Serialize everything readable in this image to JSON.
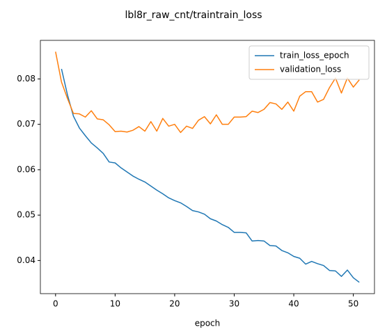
{
  "chart_data": {
    "type": "line",
    "title": "lbl8r_raw_cnt/traintrain_loss",
    "xlabel": "epoch",
    "xlim": [
      -2.55,
      53.55
    ],
    "xticks": [
      0,
      10,
      20,
      30,
      40,
      50
    ],
    "ylim": [
      0.0327,
      0.0885
    ],
    "yticks": [
      0.04,
      0.05,
      0.06,
      0.07,
      0.08
    ],
    "legend": "upper right",
    "grid": false,
    "series": [
      {
        "name": "train_loss_epoch",
        "color": "#1f77b4",
        "x": [
          1,
          2,
          3,
          4,
          5,
          6,
          7,
          8,
          9,
          10,
          11,
          12,
          13,
          14,
          15,
          16,
          17,
          18,
          19,
          20,
          21,
          22,
          23,
          24,
          25,
          26,
          27,
          28,
          29,
          30,
          31,
          32,
          33,
          34,
          35,
          36,
          37,
          38,
          39,
          40,
          41,
          42,
          43,
          44,
          45,
          46,
          47,
          48,
          49,
          50,
          51
        ],
        "values": [
          0.0822,
          0.0765,
          0.0718,
          0.0692,
          0.0675,
          0.0659,
          0.0648,
          0.0636,
          0.0617,
          0.0615,
          0.0604,
          0.0595,
          0.0586,
          0.0579,
          0.0573,
          0.0564,
          0.0555,
          0.0547,
          0.0538,
          0.0532,
          0.0527,
          0.0519,
          0.051,
          0.0507,
          0.0502,
          0.0492,
          0.0487,
          0.0479,
          0.0473,
          0.0462,
          0.0462,
          0.0461,
          0.0443,
          0.0444,
          0.0443,
          0.0433,
          0.0432,
          0.0422,
          0.0417,
          0.0409,
          0.0405,
          0.0392,
          0.0398,
          0.0393,
          0.0389,
          0.0378,
          0.0377,
          0.0365,
          0.0379,
          0.0362,
          0.0352
        ]
      },
      {
        "name": "validation_loss",
        "color": "#ff7f0e",
        "x": [
          0,
          1,
          2,
          3,
          4,
          5,
          6,
          7,
          8,
          9,
          10,
          11,
          12,
          13,
          14,
          15,
          16,
          17,
          18,
          19,
          20,
          21,
          22,
          23,
          24,
          25,
          26,
          27,
          28,
          29,
          30,
          31,
          32,
          33,
          34,
          35,
          36,
          37,
          38,
          39,
          40,
          41,
          42,
          43,
          44,
          45,
          46,
          47,
          48,
          49,
          50,
          51
        ],
        "values": [
          0.086,
          0.0793,
          0.0757,
          0.0724,
          0.0723,
          0.0716,
          0.073,
          0.0712,
          0.071,
          0.0699,
          0.0684,
          0.0685,
          0.0683,
          0.0687,
          0.0695,
          0.0685,
          0.0706,
          0.0685,
          0.0713,
          0.0696,
          0.07,
          0.0682,
          0.0696,
          0.0691,
          0.0709,
          0.0717,
          0.0701,
          0.0721,
          0.07,
          0.07,
          0.0716,
          0.0716,
          0.0717,
          0.0729,
          0.0726,
          0.0733,
          0.0748,
          0.0745,
          0.0733,
          0.0749,
          0.0729,
          0.0762,
          0.0772,
          0.0772,
          0.0749,
          0.0755,
          0.0781,
          0.0802,
          0.0769,
          0.0802,
          0.0782,
          0.0798
        ]
      }
    ]
  }
}
